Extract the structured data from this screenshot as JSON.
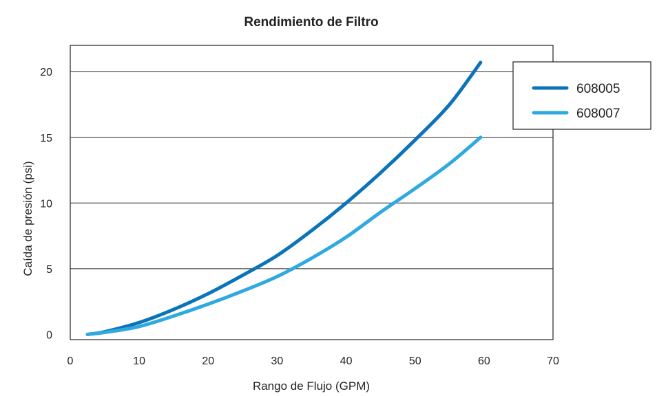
{
  "chart_data": {
    "type": "line",
    "title": "Rendimiento de Filtro",
    "xlabel": "Rango de Flujo (GPM)",
    "ylabel": "Caída de presión (psi)",
    "xlim": [
      0,
      70
    ],
    "ylim": [
      -0.4,
      22
    ],
    "x_ticks": [
      0,
      10,
      20,
      30,
      40,
      50,
      60,
      70
    ],
    "y_ticks": [
      0,
      5,
      10,
      15,
      20
    ],
    "grid": "horizontal",
    "legend_position": "top-right",
    "series": [
      {
        "name": "608005",
        "color": "#0b73b9",
        "x": [
          2.5,
          5,
          10,
          15,
          20,
          25,
          30,
          35,
          40,
          45,
          50,
          55,
          59.5
        ],
        "y": [
          0.0,
          0.2,
          0.9,
          1.9,
          3.1,
          4.5,
          6.0,
          7.9,
          10.0,
          12.3,
          14.8,
          17.5,
          20.7
        ]
      },
      {
        "name": "608007",
        "color": "#2fa9e0",
        "x": [
          2.5,
          5,
          10,
          15,
          20,
          25,
          30,
          35,
          40,
          45,
          50,
          55,
          59.5
        ],
        "y": [
          0.0,
          0.15,
          0.6,
          1.4,
          2.3,
          3.3,
          4.4,
          5.8,
          7.4,
          9.3,
          11.1,
          13.0,
          15.0
        ]
      }
    ]
  }
}
